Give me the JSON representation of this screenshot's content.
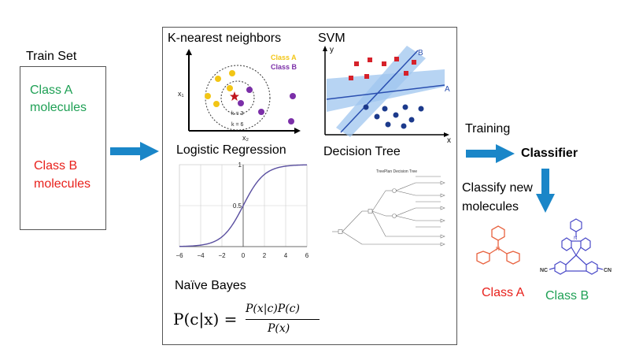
{
  "train_set": {
    "title": "Train Set",
    "class_a_line1": "Class A",
    "class_a_line2": "molecules",
    "class_b_line1": "Class B",
    "class_b_line2": "molecules"
  },
  "methods": {
    "knn": {
      "title": "K-nearest neighbors",
      "legend_a": "Class A",
      "legend_b": "Class B",
      "k3": "k = 3",
      "k6": "k = 6",
      "x1": "x₁",
      "x2": "x₂"
    },
    "svm": {
      "title": "SVM",
      "axis_y": "y",
      "axis_x": "x",
      "line_a": "A",
      "line_b": "B"
    },
    "logreg": {
      "title": "Logistic Regression",
      "chart_data": {
        "type": "line",
        "function": "sigmoid",
        "xlim": [
          -6,
          6
        ],
        "ylim": [
          0,
          1
        ],
        "x_ticks": [
          "−6",
          "−4",
          "−2",
          "0",
          "2",
          "4",
          "6"
        ],
        "y_ticks": [
          "0.5",
          "1"
        ]
      }
    },
    "dtree": {
      "title": "Decision Tree",
      "inner_title": "TreePlan Decision Tree"
    },
    "bayes": {
      "title": "Naïve Bayes",
      "formula_lhs": "P(c|x) =",
      "formula_num": "P(x|c)P(c)",
      "formula_den": "P(x)"
    }
  },
  "flow": {
    "training": "Training",
    "classifier": "Classifier",
    "classify_line1": "Classify new",
    "classify_line2": "molecules",
    "class_a": "Class A",
    "class_b": "Class B",
    "cn": "NC",
    "cn2": "CN"
  },
  "colors": {
    "green": "#1fa055",
    "red": "#e8211c",
    "blue_arrow": "#1a86c8",
    "yellow": "#f2c515",
    "purple": "#7b2fa8",
    "orange_molecule": "#e8623f",
    "blue_molecule": "#4a4ac8"
  }
}
